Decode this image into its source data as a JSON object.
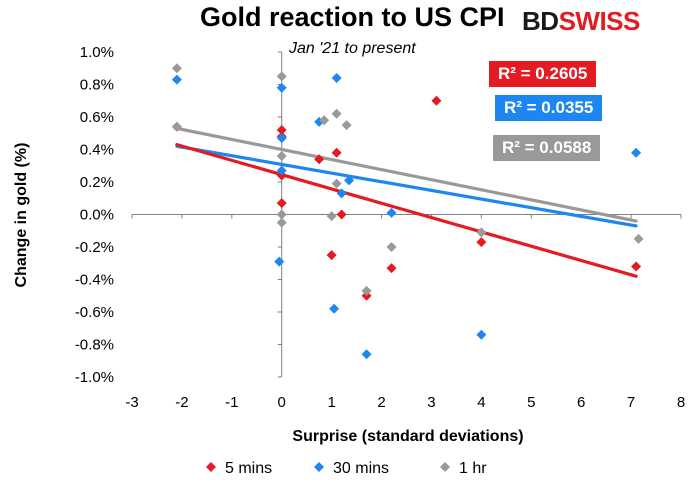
{
  "brand": {
    "bd": "BD",
    "swiss": "SWISS"
  },
  "chart_data": {
    "type": "scatter",
    "title": "Gold reaction to US CPI",
    "subtitle": "Jan '21 to present",
    "xlabel": "Surprise (standard deviations)",
    "ylabel": "Change in gold (%)",
    "xlim": [
      -3,
      8
    ],
    "ylim": [
      -1.0,
      1.0
    ],
    "xticks": [
      "-3",
      "-2",
      "-1",
      "0",
      "1",
      "2",
      "3",
      "4",
      "5",
      "6",
      "7",
      "8"
    ],
    "yticks": [
      "1.0%",
      "0.8%",
      "0.6%",
      "0.4%",
      "0.2%",
      "0.0%",
      "-0.2%",
      "-0.4%",
      "-0.6%",
      "-0.8%",
      "-1.0%"
    ],
    "legend_position": "bottom",
    "series": [
      {
        "name": "5 mins",
        "color": "#e31b23",
        "r2": "R² = 0.2605",
        "trend": {
          "x": [
            -2.1,
            7.1
          ],
          "y": [
            0.43,
            -0.38
          ]
        },
        "x": [
          -2.1,
          0.0,
          0.0,
          0.0,
          0.0,
          0.75,
          1.0,
          1.1,
          1.2,
          1.7,
          2.2,
          3.1,
          4.0,
          7.1
        ],
        "y": [
          0.54,
          0.52,
          0.48,
          0.24,
          0.07,
          0.34,
          -0.25,
          0.38,
          0.0,
          -0.5,
          -0.33,
          0.7,
          -0.17,
          -0.32
        ]
      },
      {
        "name": "30 mins",
        "color": "#1e86f0",
        "r2": "R² = 0.0355",
        "trend": {
          "x": [
            -2.1,
            7.1
          ],
          "y": [
            0.42,
            -0.07
          ]
        },
        "x": [
          -2.1,
          0.0,
          0.0,
          0.0,
          -0.05,
          0.75,
          1.05,
          1.1,
          1.2,
          1.35,
          2.2,
          1.7,
          4.0,
          7.1
        ],
        "y": [
          0.83,
          0.78,
          0.47,
          0.27,
          -0.29,
          0.57,
          -0.58,
          0.84,
          0.13,
          0.21,
          0.01,
          -0.86,
          -0.74,
          0.38
        ]
      },
      {
        "name": "1 hr",
        "color": "#999999",
        "r2": "R² = 0.0588",
        "trend": {
          "x": [
            -2.1,
            7.1
          ],
          "y": [
            0.53,
            -0.04
          ]
        },
        "x": [
          -2.1,
          -2.1,
          0.0,
          0.0,
          0.0,
          0.0,
          0.85,
          1.1,
          1.3,
          1.1,
          1.0,
          1.7,
          2.2,
          4.0,
          7.15
        ],
        "y": [
          0.9,
          0.54,
          0.85,
          0.36,
          0.0,
          -0.05,
          0.58,
          0.62,
          0.55,
          0.19,
          -0.01,
          -0.47,
          -0.2,
          -0.11,
          -0.15
        ]
      }
    ]
  }
}
